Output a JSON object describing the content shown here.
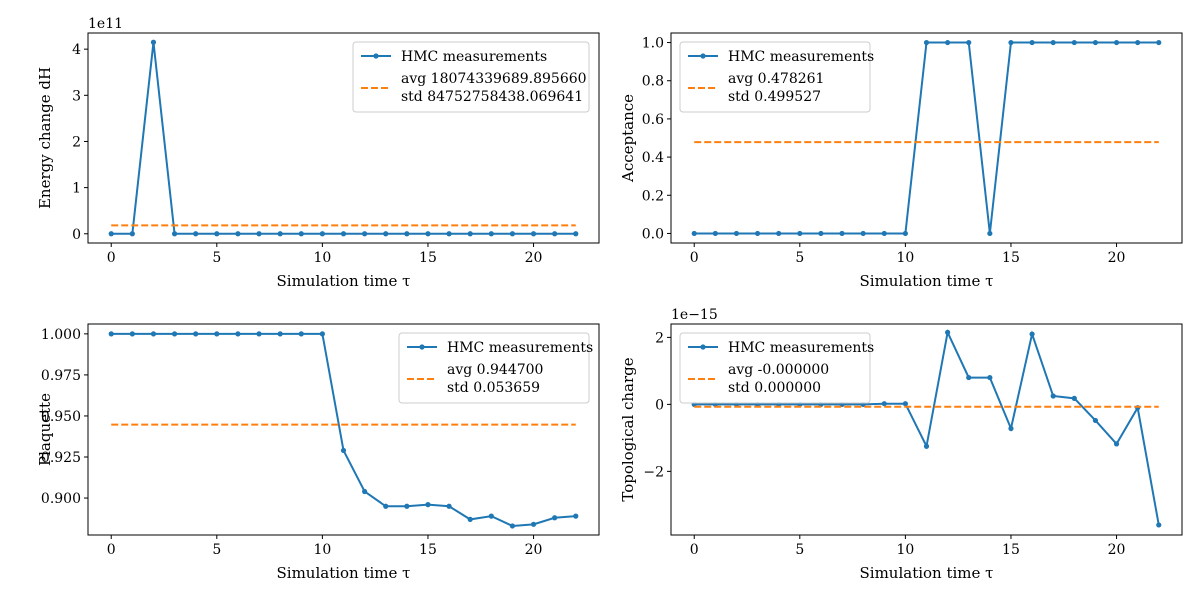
{
  "figure": {
    "background": "#ffffff"
  },
  "colors": {
    "measurements": "#1f77b4",
    "average": "#ff7f0e",
    "axes": "#000000"
  },
  "chart_data": [
    {
      "type": "line",
      "panel": "top-left",
      "xlabel": "Simulation time τ",
      "ylabel": "Energy change dH",
      "offset_text": "1e11",
      "scale": 100000000000.0,
      "xlim": [
        -1.1,
        23.1
      ],
      "ylim": [
        -0.2,
        4.35
      ],
      "xticks": [
        0,
        5,
        10,
        15,
        20
      ],
      "yticks": [
        0,
        1,
        2,
        3,
        4
      ],
      "ytick_labels": [
        "0",
        "1",
        "2",
        "3",
        "4"
      ],
      "legend": {
        "placement": "top-right",
        "entries": [
          "HMC measurements",
          "avg 18074339689.895660",
          "std 84752758438.069641"
        ]
      },
      "series": [
        {
          "name": "HMC measurements",
          "style": "line-marker",
          "x": [
            0,
            1,
            2,
            3,
            4,
            5,
            6,
            7,
            8,
            9,
            10,
            11,
            12,
            13,
            14,
            15,
            16,
            17,
            18,
            19,
            20,
            21,
            22
          ],
          "y": [
            0,
            0,
            4.15,
            0,
            0,
            0,
            0,
            0,
            0,
            0,
            0,
            0,
            0,
            0,
            0,
            0,
            0,
            0,
            0,
            0,
            0,
            0,
            0
          ]
        },
        {
          "name": "avg",
          "style": "dashed",
          "x": [
            0,
            22
          ],
          "y": [
            0.1807,
            0.1807
          ]
        }
      ]
    },
    {
      "type": "line",
      "panel": "top-right",
      "xlabel": "Simulation time τ",
      "ylabel": "Acceptance",
      "offset_text": "",
      "scale": 1,
      "xlim": [
        -1.1,
        23.1
      ],
      "ylim": [
        -0.05,
        1.05
      ],
      "xticks": [
        0,
        5,
        10,
        15,
        20
      ],
      "yticks": [
        0,
        0.2,
        0.4,
        0.6,
        0.8,
        1.0
      ],
      "ytick_labels": [
        "0.0",
        "0.2",
        "0.4",
        "0.6",
        "0.8",
        "1.0"
      ],
      "legend": {
        "placement": "top-left",
        "entries": [
          "HMC measurements",
          "avg 0.478261",
          "std 0.499527"
        ]
      },
      "series": [
        {
          "name": "HMC measurements",
          "style": "line-marker",
          "x": [
            0,
            1,
            2,
            3,
            4,
            5,
            6,
            7,
            8,
            9,
            10,
            11,
            12,
            13,
            14,
            15,
            16,
            17,
            18,
            19,
            20,
            21,
            22
          ],
          "y": [
            0,
            0,
            0,
            0,
            0,
            0,
            0,
            0,
            0,
            0,
            0,
            1,
            1,
            1,
            0,
            1,
            1,
            1,
            1,
            1,
            1,
            1,
            1
          ]
        },
        {
          "name": "avg",
          "style": "dashed",
          "x": [
            0,
            22
          ],
          "y": [
            0.478261,
            0.478261
          ]
        }
      ]
    },
    {
      "type": "line",
      "panel": "bottom-left",
      "xlabel": "Simulation time τ",
      "ylabel": "Plaquette",
      "offset_text": "",
      "scale": 1,
      "xlim": [
        -1.1,
        23.1
      ],
      "ylim": [
        0.8775,
        1.006
      ],
      "xticks": [
        0,
        5,
        10,
        15,
        20
      ],
      "yticks": [
        0.9,
        0.925,
        0.95,
        0.975,
        1.0
      ],
      "ytick_labels": [
        "0.900",
        "0.925",
        "0.950",
        "0.975",
        "1.000"
      ],
      "legend": {
        "placement": "top-right",
        "entries": [
          "HMC measurements",
          "avg 0.944700",
          "std 0.053659"
        ]
      },
      "series": [
        {
          "name": "HMC measurements",
          "style": "line-marker",
          "x": [
            0,
            1,
            2,
            3,
            4,
            5,
            6,
            7,
            8,
            9,
            10,
            11,
            12,
            13,
            14,
            15,
            16,
            17,
            18,
            19,
            20,
            21,
            22
          ],
          "y": [
            1,
            1,
            1,
            1,
            1,
            1,
            1,
            1,
            1,
            1,
            1,
            0.929,
            0.904,
            0.895,
            0.895,
            0.896,
            0.895,
            0.887,
            0.889,
            0.883,
            0.884,
            0.888,
            0.889
          ]
        },
        {
          "name": "avg",
          "style": "dashed",
          "x": [
            0,
            22
          ],
          "y": [
            0.9447,
            0.9447
          ]
        }
      ]
    },
    {
      "type": "line",
      "panel": "bottom-right",
      "xlabel": "Simulation time τ",
      "ylabel": "Topological charge",
      "offset_text": "1e−15",
      "scale": 1e-15,
      "xlim": [
        -1.1,
        23.1
      ],
      "ylim": [
        -3.9,
        2.4
      ],
      "xticks": [
        0,
        5,
        10,
        15,
        20
      ],
      "yticks": [
        -2,
        0,
        2
      ],
      "ytick_labels": [
        "−2",
        "0",
        "2"
      ],
      "legend": {
        "placement": "top-left",
        "entries": [
          "HMC measurements",
          "avg -0.000000",
          "std 0.000000"
        ]
      },
      "series": [
        {
          "name": "HMC measurements",
          "style": "line-marker",
          "x": [
            0,
            1,
            2,
            3,
            4,
            5,
            6,
            7,
            8,
            9,
            10,
            11,
            12,
            13,
            14,
            15,
            16,
            17,
            18,
            19,
            20,
            21,
            22
          ],
          "y": [
            0,
            0,
            0,
            0,
            0,
            0,
            0,
            0,
            0,
            0.02,
            0.02,
            -1.25,
            2.15,
            0.8,
            0.8,
            -0.72,
            2.1,
            0.25,
            0.18,
            -0.48,
            -1.18,
            -0.1,
            -3.6
          ]
        },
        {
          "name": "avg",
          "style": "dashed",
          "x": [
            0,
            22
          ],
          "y": [
            -0.07,
            -0.07
          ]
        }
      ]
    }
  ]
}
